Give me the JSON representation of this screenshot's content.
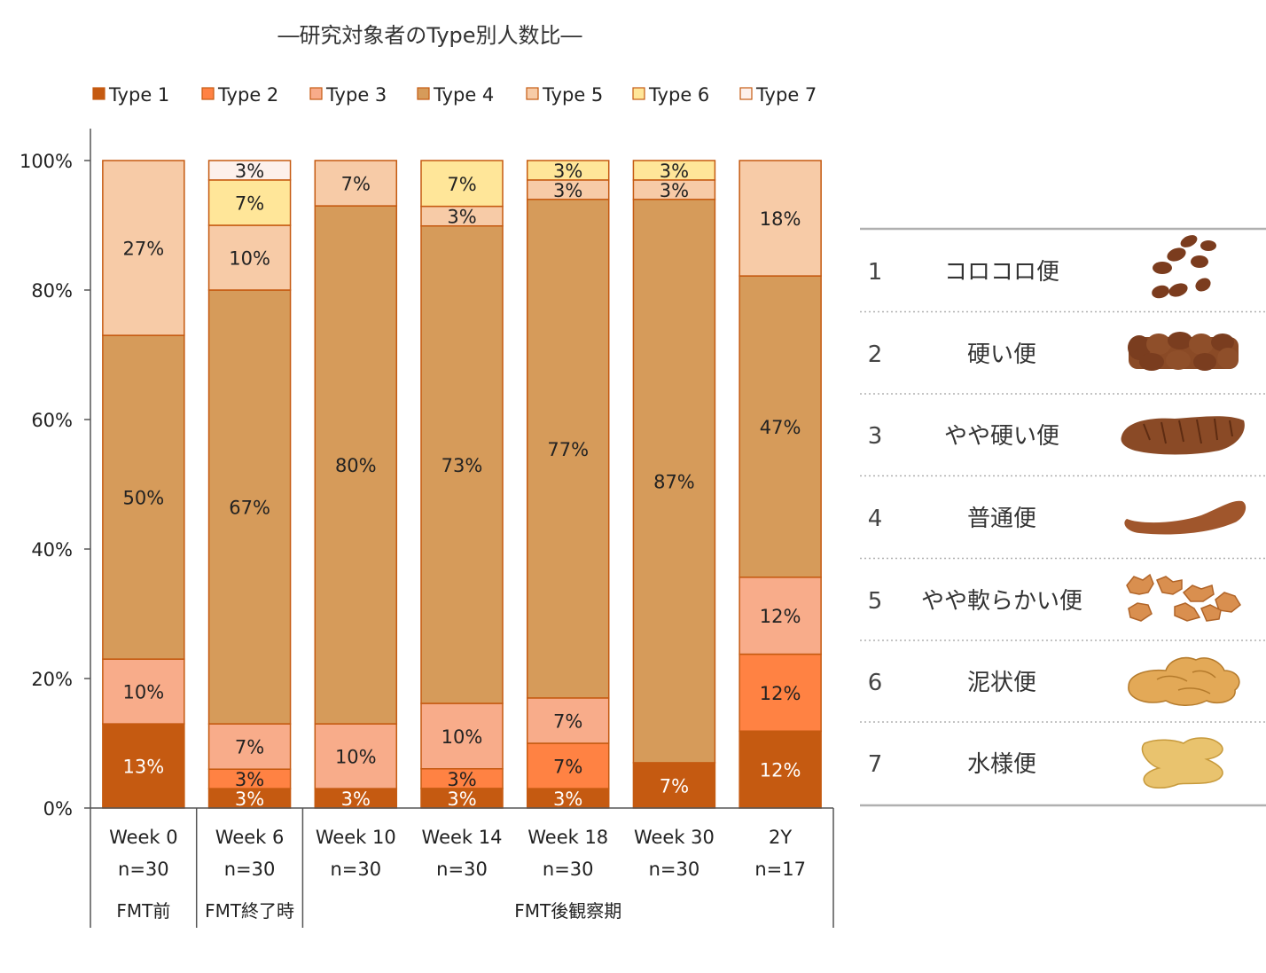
{
  "chart_data": {
    "type": "bar",
    "stacked": true,
    "title": "―研究対象者のType別人数比―",
    "xlabel": "",
    "ylabel": "",
    "ylim": [
      0,
      100
    ],
    "y_ticks": [
      "0%",
      "20%",
      "40%",
      "60%",
      "80%",
      "100%"
    ],
    "grid": false,
    "legend_position": "top",
    "categories": [
      "Week 0",
      "Week 6",
      "Week 10",
      "Week 14",
      "Week 18",
      "Week 30",
      "2Y"
    ],
    "n_labels": [
      "n=30",
      "n=30",
      "n=30",
      "n=30",
      "n=30",
      "n=30",
      "n=17"
    ],
    "groups": [
      {
        "label": "FMT前",
        "categories": [
          "Week 0"
        ]
      },
      {
        "label": "FMT終了時",
        "categories": [
          "Week 6"
        ]
      },
      {
        "label": "FMT後観察期",
        "categories": [
          "Week 10",
          "Week 14",
          "Week 18",
          "Week 30",
          "2Y"
        ]
      }
    ],
    "series": [
      {
        "name": "Type 1",
        "color": "#c55a11",
        "label_color": "#ffffff",
        "values": [
          13,
          3,
          3,
          3,
          3,
          7,
          12
        ],
        "labels": [
          "13%",
          "3%",
          "3%",
          "3%",
          "3%",
          "7%",
          "12%"
        ]
      },
      {
        "name": "Type 2",
        "color": "#ff8243",
        "label_color": "#222222",
        "values": [
          0,
          3,
          0,
          3,
          7,
          0,
          12
        ],
        "labels": [
          "",
          "3%",
          "",
          "3%",
          "7%",
          "",
          "12%"
        ]
      },
      {
        "name": "Type 3",
        "color": "#f8ac8a",
        "label_color": "#222222",
        "values": [
          10,
          7,
          10,
          10,
          7,
          0,
          12
        ],
        "labels": [
          "10%",
          "7%",
          "10%",
          "10%",
          "7%",
          "",
          "12%"
        ]
      },
      {
        "name": "Type 4",
        "color": "#d69b5a",
        "label_color": "#222222",
        "values": [
          50,
          67,
          80,
          73,
          77,
          87,
          47
        ],
        "labels": [
          "50%",
          "67%",
          "80%",
          "73%",
          "77%",
          "87%",
          "47%"
        ]
      },
      {
        "name": "Type 5",
        "color": "#f7cba7",
        "label_color": "#222222",
        "values": [
          27,
          10,
          7,
          3,
          3,
          3,
          18
        ],
        "labels": [
          "27%",
          "10%",
          "7%",
          "3%",
          "3%",
          "3%",
          "18%"
        ]
      },
      {
        "name": "Type 6",
        "color": "#ffe699",
        "label_color": "#222222",
        "values": [
          0,
          7,
          0,
          7,
          3,
          3,
          0
        ],
        "labels": [
          "",
          "7%",
          "",
          "7%",
          "3%",
          "3%",
          ""
        ]
      },
      {
        "name": "Type 7",
        "color": "#fdf0eb",
        "label_color": "#222222",
        "values": [
          0,
          3,
          0,
          0,
          0,
          0,
          0
        ],
        "labels": [
          "",
          "3%",
          "",
          "",
          "",
          "",
          ""
        ]
      }
    ]
  },
  "stool_legend": [
    {
      "number": "1",
      "label": "コロコロ便",
      "icon": "type1-hard-lumps-icon"
    },
    {
      "number": "2",
      "label": "硬い便",
      "icon": "type2-lumpy-sausage-icon"
    },
    {
      "number": "3",
      "label": "やや硬い便",
      "icon": "type3-cracked-sausage-icon"
    },
    {
      "number": "4",
      "label": "普通便",
      "icon": "type4-smooth-sausage-icon"
    },
    {
      "number": "5",
      "label": "やや軟らかい便",
      "icon": "type5-soft-blobs-icon"
    },
    {
      "number": "6",
      "label": "泥状便",
      "icon": "type6-mushy-icon"
    },
    {
      "number": "7",
      "label": "水様便",
      "icon": "type7-watery-icon"
    }
  ],
  "colors": {
    "bar_outline": "#c55a11",
    "axis": "#555555",
    "stool_dark": "#7b3c1e",
    "stool_mid": "#8a4a26",
    "stool_sausage": "#a0562c",
    "stool_soft": "#d98f4f",
    "stool_mushy": "#e3a957",
    "stool_watery": "#e9c36e",
    "separator": "#b0b0b0"
  }
}
